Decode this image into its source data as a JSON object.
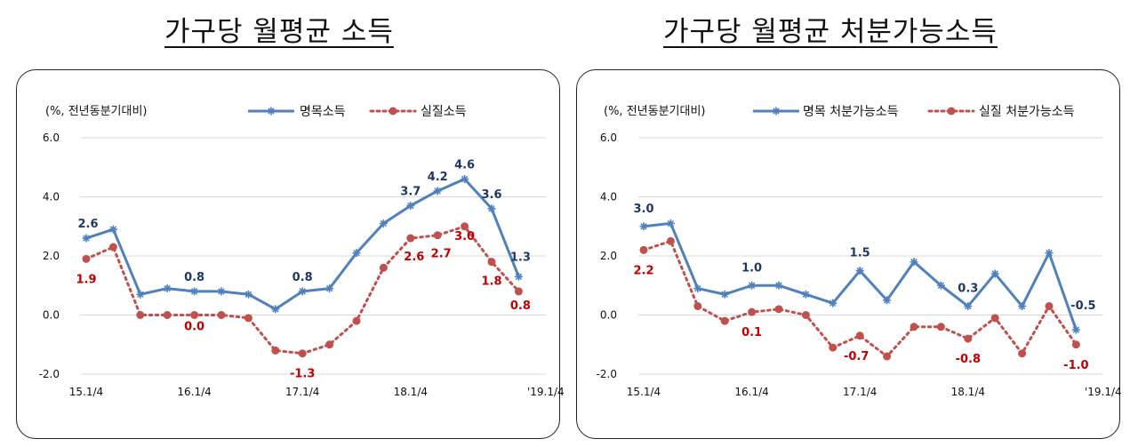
{
  "colors": {
    "nominal": "#4F81BD",
    "real": "#C0504D",
    "nominal_label": "#1F3864",
    "real_label": "#C00000",
    "grid": "#D9D9D9"
  },
  "titles": {
    "left": "가구당 월평균 소득",
    "right": "가구당 월평균 처분가능소득"
  },
  "chart_data": [
    {
      "type": "line",
      "title": "가구당 월평균 소득",
      "unit_label": "(%, 전년동분기대비)",
      "ylim": [
        -2.0,
        6.0
      ],
      "y_ticks": [
        "6.0",
        "4.0",
        "2.0",
        "0.0",
        "-2.0"
      ],
      "x_tick_labels": [
        "15.1/4",
        "16.1/4",
        "17.1/4",
        "18.1/4",
        "'19.1/4"
      ],
      "x_tick_indices": [
        0,
        4,
        8,
        12,
        17
      ],
      "grid": true,
      "legend_position": "top",
      "series": [
        {
          "name": "명목소득",
          "style": "solid-star",
          "values": [
            2.6,
            2.9,
            0.7,
            0.9,
            0.8,
            0.8,
            0.7,
            0.2,
            0.8,
            0.9,
            2.1,
            3.1,
            3.7,
            4.2,
            4.6,
            3.6,
            1.3
          ],
          "labels": [
            [
              0,
              "2.6"
            ],
            [
              4,
              "0.8"
            ],
            [
              8,
              "0.8"
            ],
            [
              12,
              "3.7"
            ],
            [
              13,
              "4.2"
            ],
            [
              14,
              "4.6"
            ],
            [
              15,
              "3.6"
            ],
            [
              16,
              "1.3"
            ]
          ]
        },
        {
          "name": "실질소득",
          "style": "dotted-circle",
          "values": [
            1.9,
            2.3,
            0.0,
            0.0,
            0.0,
            0.0,
            -0.1,
            -1.2,
            -1.3,
            -1.0,
            -0.2,
            1.6,
            2.6,
            2.7,
            3.0,
            1.8,
            0.8
          ],
          "labels": [
            [
              0,
              "1.9"
            ],
            [
              4,
              "0.0"
            ],
            [
              8,
              "-1.3"
            ],
            [
              12,
              "2.6"
            ],
            [
              13,
              "2.7"
            ],
            [
              14,
              "3.0"
            ],
            [
              15,
              "1.8"
            ],
            [
              16,
              "0.8"
            ]
          ]
        }
      ]
    },
    {
      "type": "line",
      "title": "가구당 월평균 처분가능소득",
      "unit_label": "(%, 전년동분기대비)",
      "ylim": [
        -2.0,
        6.0
      ],
      "y_ticks": [
        "6.0",
        "4.0",
        "2.0",
        "0.0",
        "-2.0"
      ],
      "x_tick_labels": [
        "15.1/4",
        "16.1/4",
        "17.1/4",
        "18.1/4",
        "'19.1/4"
      ],
      "x_tick_indices": [
        0,
        4,
        8,
        12,
        17
      ],
      "grid": true,
      "legend_position": "top",
      "series": [
        {
          "name": "명목 처분가능소득",
          "style": "solid-star",
          "values": [
            3.0,
            3.1,
            0.9,
            0.7,
            1.0,
            1.0,
            0.7,
            0.4,
            1.5,
            0.5,
            1.8,
            1.0,
            0.3,
            1.4,
            0.3,
            2.1,
            -0.5
          ],
          "labels": [
            [
              0,
              "3.0"
            ],
            [
              4,
              "1.0"
            ],
            [
              8,
              "1.5"
            ],
            [
              12,
              "0.3"
            ],
            [
              16,
              "-0.5"
            ]
          ]
        },
        {
          "name": "실질 처분가능소득",
          "style": "dotted-circle",
          "values": [
            2.2,
            2.5,
            0.3,
            -0.2,
            0.1,
            0.2,
            0.0,
            -1.1,
            -0.7,
            -1.4,
            -0.4,
            -0.4,
            -0.8,
            -0.1,
            -1.3,
            0.3,
            -1.0
          ],
          "labels": [
            [
              0,
              "2.2"
            ],
            [
              4,
              "0.1"
            ],
            [
              8,
              "-0.7"
            ],
            [
              12,
              "-0.8"
            ],
            [
              16,
              "-1.0"
            ]
          ]
        }
      ]
    }
  ]
}
